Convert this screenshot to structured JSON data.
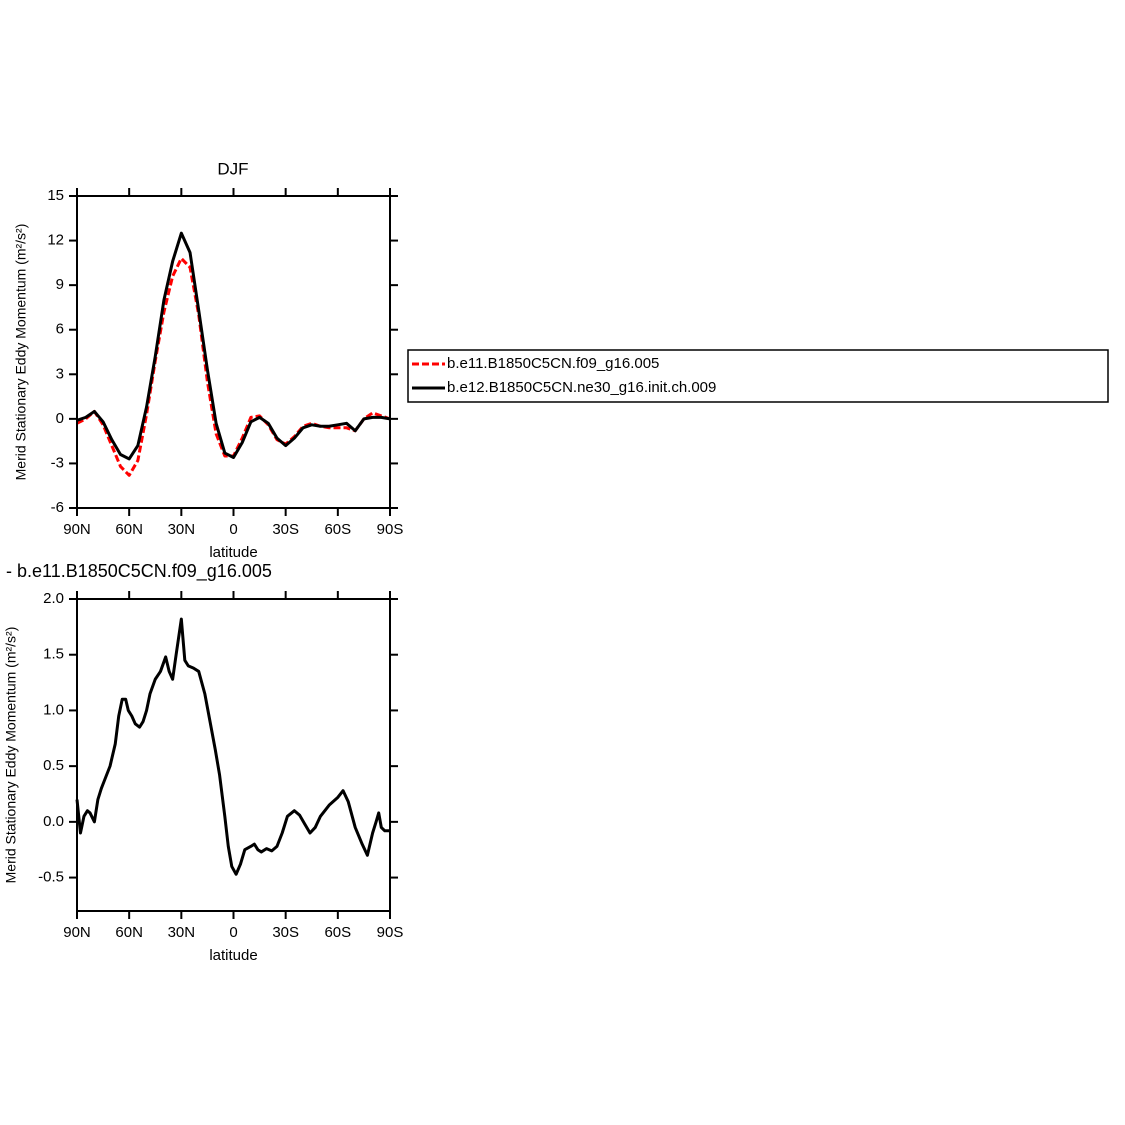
{
  "chart_data": [
    {
      "type": "line",
      "title": "DJF",
      "xlabel": "latitude",
      "ylabel": "Merid Stationary Eddy Momentum (m²/s²)",
      "x": [
        90,
        85,
        80,
        75,
        70,
        65,
        60,
        55,
        50,
        45,
        40,
        35,
        30,
        25,
        20,
        15,
        10,
        5,
        0,
        -5,
        -10,
        -15,
        -20,
        -25,
        -30,
        -35,
        -40,
        -45,
        -50,
        -55,
        -60,
        -65,
        -70,
        -75,
        -80,
        -85,
        -90
      ],
      "series": [
        {
          "name": "b.e11.B1850C5CN.f09_g16.005",
          "color": "#ff0000",
          "dashed": true,
          "values": [
            -0.3,
            0.0,
            0.5,
            -0.4,
            -1.8,
            -3.2,
            -3.8,
            -2.8,
            0.3,
            3.9,
            7.2,
            9.6,
            10.8,
            10.2,
            7.0,
            2.5,
            -1.0,
            -2.5,
            -2.5,
            -1.3,
            0.1,
            0.2,
            -0.4,
            -1.4,
            -1.7,
            -1.2,
            -0.5,
            -0.3,
            -0.5,
            -0.6,
            -0.6,
            -0.6,
            -0.8,
            0.0,
            0.4,
            0.2,
            0.0
          ]
        },
        {
          "name": "b.e12.B1850C5CN.ne30_g16.init.ch.009",
          "color": "#000000",
          "dashed": false,
          "values": [
            -0.1,
            0.1,
            0.5,
            -0.2,
            -1.4,
            -2.4,
            -2.7,
            -1.8,
            0.8,
            4.2,
            8.0,
            10.6,
            12.5,
            11.2,
            7.3,
            3.3,
            -0.3,
            -2.3,
            -2.6,
            -1.6,
            -0.2,
            0.1,
            -0.3,
            -1.3,
            -1.8,
            -1.3,
            -0.6,
            -0.4,
            -0.5,
            -0.5,
            -0.4,
            -0.3,
            -0.8,
            0.0,
            0.1,
            0.1,
            0.0
          ]
        }
      ],
      "xlim": [
        90,
        -90
      ],
      "xticks": [
        {
          "value": 90,
          "label": "90N"
        },
        {
          "value": 60,
          "label": "60N"
        },
        {
          "value": 30,
          "label": "30N"
        },
        0,
        {
          "value": -30,
          "label": "30S"
        },
        {
          "value": -60,
          "label": "60S"
        },
        {
          "value": -90,
          "label": "90S"
        }
      ],
      "ylim": [
        -6,
        15
      ],
      "yticks": [
        -6,
        -3,
        0,
        3,
        6,
        9,
        12,
        15
      ],
      "legend": "right"
    },
    {
      "type": "line",
      "title": "- b.e11.B1850C5CN.f09_g16.005",
      "xlabel": "latitude",
      "ylabel": "Merid Stationary Eddy Momentum (m²/s²)",
      "x": [
        90,
        88,
        86,
        84,
        82.5,
        80,
        78,
        76,
        74,
        71,
        68,
        66,
        64,
        62,
        60.5,
        58.5,
        56.5,
        54,
        52,
        50,
        48,
        45,
        42,
        39,
        37,
        35,
        33,
        30,
        28,
        26,
        23,
        20,
        16.5,
        13.5,
        10.5,
        8,
        5,
        3,
        1,
        -1.5,
        -4,
        -6.5,
        -10,
        -12,
        -14,
        -16,
        -19,
        -22,
        -25,
        -28,
        -31,
        -35,
        -38,
        -41,
        -44,
        -47,
        -50,
        -55,
        -60,
        -63,
        -66,
        -70,
        -74,
        -77,
        -80,
        -82,
        -83.5,
        -85,
        -87,
        -90
      ],
      "series": [
        {
          "name": "b.e11.B1850C5CN.f09_g16.005",
          "color": "#000000",
          "values": [
            0.2,
            -0.1,
            0.05,
            0.1,
            0.08,
            0.0,
            0.2,
            0.3,
            0.38,
            0.5,
            0.7,
            0.95,
            1.1,
            1.1,
            1.0,
            0.95,
            0.88,
            0.85,
            0.9,
            1.0,
            1.15,
            1.28,
            1.35,
            1.48,
            1.35,
            1.28,
            1.5,
            1.82,
            1.45,
            1.4,
            1.38,
            1.35,
            1.15,
            0.9,
            0.65,
            0.42,
            0.05,
            -0.22,
            -0.4,
            -0.47,
            -0.38,
            -0.25,
            -0.22,
            -0.2,
            -0.25,
            -0.27,
            -0.24,
            -0.26,
            -0.22,
            -0.1,
            0.05,
            0.1,
            0.06,
            -0.02,
            -0.1,
            -0.05,
            0.05,
            0.15,
            0.22,
            0.28,
            0.18,
            -0.05,
            -0.2,
            -0.3,
            -0.1,
            0.0,
            0.08,
            -0.05,
            -0.08,
            -0.08
          ]
        }
      ],
      "xlim": [
        90,
        -90
      ],
      "xticks": [
        {
          "value": 90,
          "label": "90N"
        },
        {
          "value": 60,
          "label": "60N"
        },
        {
          "value": 30,
          "label": "30N"
        },
        0,
        {
          "value": -30,
          "label": "30S"
        },
        {
          "value": -60,
          "label": "60S"
        },
        {
          "value": -90,
          "label": "90S"
        }
      ],
      "ylim": [
        -0.8,
        2.0
      ],
      "yticks": [
        {
          "value": -0.5,
          "label": "-0.5"
        },
        {
          "value": 0,
          "label": "0.0"
        },
        {
          "value": 0.5,
          "label": "0.5"
        },
        {
          "value": 1,
          "label": "1.0"
        },
        {
          "value": 1.5,
          "label": "1.5"
        },
        {
          "value": 2,
          "label": "2.0"
        }
      ]
    }
  ]
}
